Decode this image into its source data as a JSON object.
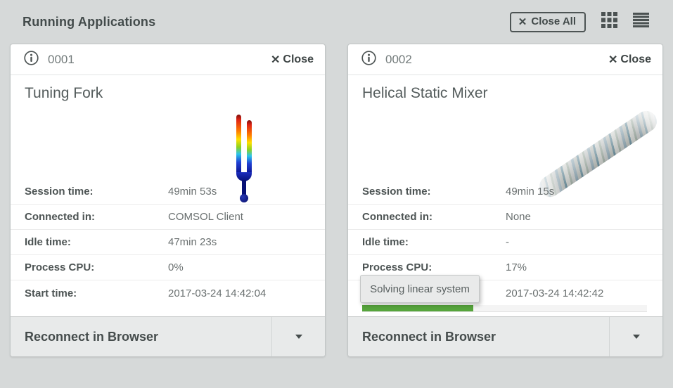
{
  "header": {
    "title": "Running Applications",
    "close_all_button": {
      "icon_glyph": "✕",
      "label": "Close All"
    },
    "grid_view_icon": "grid-3x3-icon",
    "list_view_icon": "list-lines-icon"
  },
  "colors": {
    "page_background": "#d6d9d9",
    "card_background": "#ffffff",
    "footer_background": "#e8eaea",
    "progress_green": "#56a53c",
    "text_dark": "#454c4c",
    "text_muted": "#6a7070"
  },
  "cards": [
    {
      "session_id": "0001",
      "info_icon": "circled-i-icon",
      "close_button": {
        "icon_glyph": "✕",
        "label": "Close"
      },
      "app_name": "Tuning Fork",
      "preview_image": "tuning-fork-color-plot",
      "stats": [
        {
          "label": "Session time:",
          "value": "49min 53s"
        },
        {
          "label": "Connected in:",
          "value": "COMSOL Client"
        },
        {
          "label": "Idle time:",
          "value": "47min 23s"
        },
        {
          "label": "Process CPU:",
          "value": "0%"
        },
        {
          "label": "Start time:",
          "value": "2017-03-24 14:42:04"
        }
      ],
      "footer": {
        "primary_label": "Reconnect in Browser",
        "dropdown_icon": "caret-down-icon"
      }
    },
    {
      "session_id": "0002",
      "info_icon": "circled-i-icon",
      "close_button": {
        "icon_glyph": "✕",
        "label": "Close"
      },
      "app_name": "Helical Static Mixer",
      "preview_image": "helical-static-mixer-plot",
      "stats": [
        {
          "label": "Session time:",
          "value": "49min 15s"
        },
        {
          "label": "Connected in:",
          "value": "None"
        },
        {
          "label": "Idle time:",
          "value": "-"
        },
        {
          "label": "Process CPU:",
          "value": "17%"
        },
        {
          "label": "",
          "value": "2017-03-24 14:42:42"
        }
      ],
      "status_tooltip": "Solving linear system",
      "progress_percent": 39,
      "footer": {
        "primary_label": "Reconnect in Browser",
        "dropdown_icon": "caret-down-icon"
      }
    }
  ]
}
